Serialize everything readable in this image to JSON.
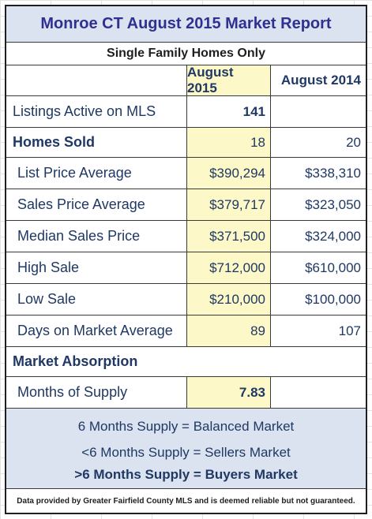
{
  "report": {
    "title": "Monroe CT August 2015 Market Report",
    "subtitle": "Single Family Homes Only",
    "col_aug_2015": "August 2015",
    "col_aug_2014": "August 2014",
    "listings_active": {
      "label": "Listings Active on MLS",
      "aug_2015": "141",
      "aug_2014": ""
    },
    "homes_sold": {
      "label": "Homes Sold",
      "aug_2015": "18",
      "aug_2014": "20"
    },
    "metrics": [
      {
        "label": "List Price Average",
        "aug_2015": "$390,294",
        "aug_2014": "$338,310"
      },
      {
        "label": "Sales Price Average",
        "aug_2015": "$379,717",
        "aug_2014": "$323,050"
      },
      {
        "label": "Median Sales Price",
        "aug_2015": "$371,500",
        "aug_2014": "$324,000"
      },
      {
        "label": "High Sale",
        "aug_2015": "$712,000",
        "aug_2014": "$610,000"
      },
      {
        "label": "Low Sale",
        "aug_2015": "$210,000",
        "aug_2014": "$100,000"
      },
      {
        "label": "Days on Market Average",
        "aug_2015": "89",
        "aug_2014": "107"
      }
    ],
    "market_absorption_label": "Market Absorption",
    "months_of_supply": {
      "label": "Months of Supply",
      "aug_2015": "7.83",
      "aug_2014": ""
    },
    "supply_notes": [
      "6 Months Supply = Balanced Market",
      "<6 Months Supply = Sellers Market",
      ">6 Months Supply = Buyers Market"
    ],
    "footer": "Data provided by Greater Fairfield County MLS and is deemed reliable but not guaranteed."
  },
  "colors": {
    "title_bg": "#dbe3f0",
    "highlight": "#fdf8c8",
    "text": "#1f3864",
    "title_text": "#2e3192"
  }
}
